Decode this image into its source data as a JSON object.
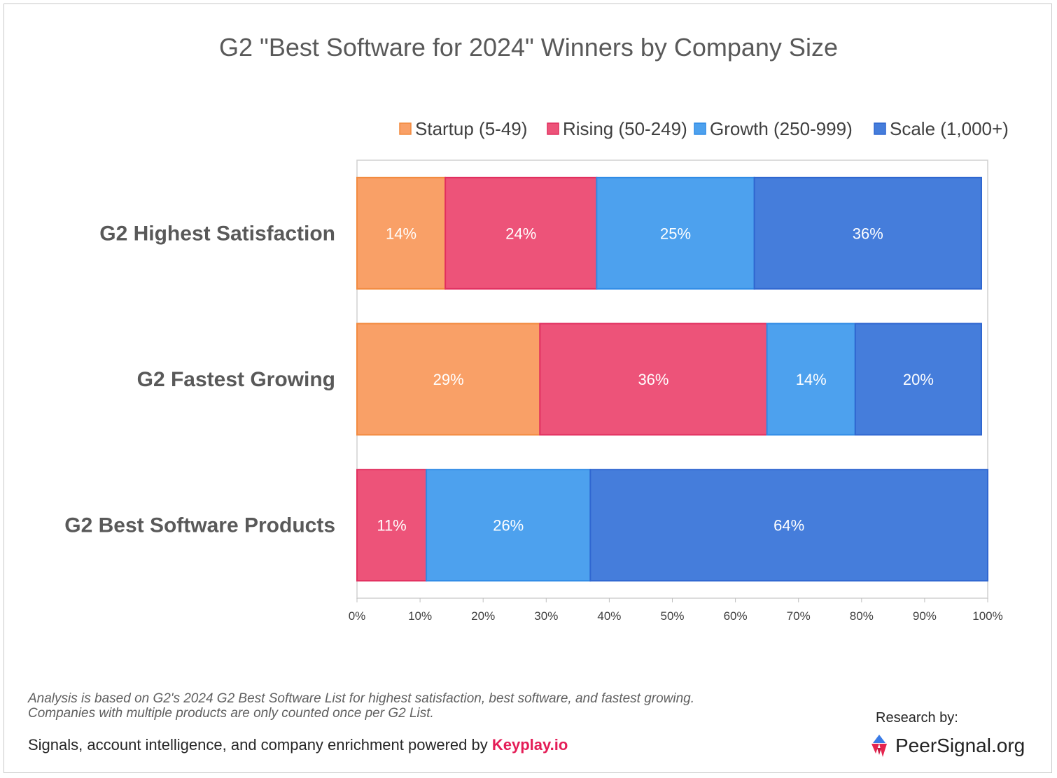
{
  "chart_data": {
    "type": "bar",
    "orientation": "horizontal",
    "stacked": true,
    "title": "G2 \"Best Software for 2024\" Winners by Company Size",
    "categories": [
      "G2 Highest Satisfaction",
      "G2 Fastest Growing",
      "G2 Best Software Products"
    ],
    "series": [
      {
        "name": "Startup (5-49)",
        "color": "#f9a067",
        "edge": "#f28a3f",
        "values": [
          14,
          29,
          0
        ]
      },
      {
        "name": "Rising (50-249)",
        "color": "#ed5379",
        "edge": "#e12f5f",
        "values": [
          24,
          36,
          11
        ]
      },
      {
        "name": "Growth (250-999)",
        "color": "#4da1ee",
        "edge": "#2f8be6",
        "values": [
          25,
          14,
          26
        ]
      },
      {
        "name": "Scale (1,000+)",
        "color": "#457ddb",
        "edge": "#2f66d0",
        "values": [
          36,
          20,
          64
        ]
      }
    ],
    "labels": [
      [
        "14%",
        "24%",
        "25%",
        "36%"
      ],
      [
        "29%",
        "36%",
        "14%",
        "20%"
      ],
      [
        "",
        "11%",
        "26%",
        "64%"
      ]
    ],
    "xticks": [
      "0%",
      "10%",
      "20%",
      "30%",
      "40%",
      "50%",
      "60%",
      "70%",
      "80%",
      "90%",
      "100%"
    ],
    "xlim": [
      0,
      100
    ],
    "legend_position": "top-right",
    "grid": false
  },
  "footer": {
    "note": "Analysis is based on G2's 2024 G2 Best Software List for highest satisfaction, best software, and fastest growing. Companies with multiple products are only counted once per G2 List.",
    "powered_prefix": "Signals, account intelligence, and company enrichment powered by ",
    "powered_brand": "Keyplay.io",
    "research_by": "Research by:",
    "logo_text": "PeerSignal.org",
    "logo_icon": "peersignal-logo-icon"
  }
}
